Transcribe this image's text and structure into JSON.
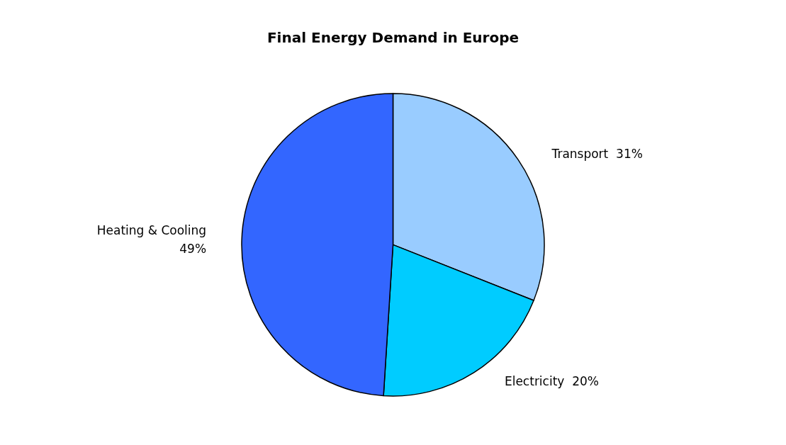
{
  "chart_data": {
    "type": "pie",
    "title": "Final Energy Demand in Europe",
    "categories": [
      "Transport",
      "Electricity",
      "Heating & Cooling"
    ],
    "values": [
      31,
      20,
      49
    ],
    "colors": [
      "#99ccff",
      "#00ccff",
      "#3366ff"
    ],
    "value_labels": [
      "31%",
      "20%",
      "49%"
    ],
    "legend": false
  }
}
